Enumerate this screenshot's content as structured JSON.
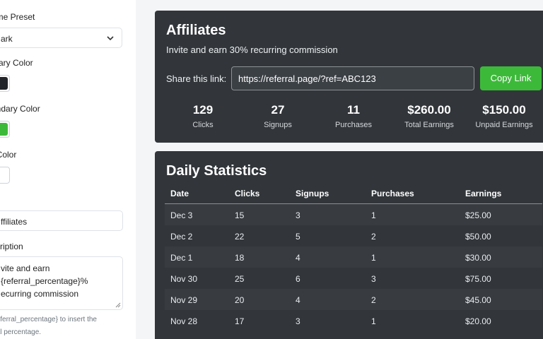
{
  "settings": {
    "theme_preset_label": "eme Preset",
    "theme_preset_value": "ark",
    "primary_color_label": "mary Color",
    "primary_color": "#212529",
    "secondary_color_label": "ondary Color",
    "secondary_color": "#3db93a",
    "text_color_label": "t Color",
    "text_color": "#ffffff",
    "title_label": "e",
    "title_value": "ffiliates",
    "description_label": "scription",
    "description_value": "vite and earn\n{referral_percentage}%\necurring commission",
    "help_text_line1": "{referral_percentage} to insert the",
    "help_text_line2": "rral percentage."
  },
  "affiliates": {
    "title": "Affiliates",
    "subtitle": "Invite and earn 30% recurring commission",
    "share_label": "Share this link:",
    "share_link": "https://referral.page/?ref=ABC123",
    "copy_button": "Copy Link",
    "stats": [
      {
        "value": "129",
        "label": "Clicks"
      },
      {
        "value": "27",
        "label": "Signups"
      },
      {
        "value": "11",
        "label": "Purchases"
      },
      {
        "value": "$260.00",
        "label": "Total Earnings"
      },
      {
        "value": "$150.00",
        "label": "Unpaid Earnings"
      }
    ]
  },
  "daily_stats": {
    "title": "Daily Statistics",
    "columns": [
      "Date",
      "Clicks",
      "Signups",
      "Purchases",
      "Earnings"
    ],
    "rows": [
      [
        "Dec 3",
        "15",
        "3",
        "1",
        "$25.00"
      ],
      [
        "Dec 2",
        "22",
        "5",
        "2",
        "$50.00"
      ],
      [
        "Dec 1",
        "18",
        "4",
        "1",
        "$30.00"
      ],
      [
        "Nov 30",
        "25",
        "6",
        "3",
        "$75.00"
      ],
      [
        "Nov 29",
        "20",
        "4",
        "2",
        "$45.00"
      ],
      [
        "Nov 28",
        "17",
        "3",
        "1",
        "$20.00"
      ]
    ]
  }
}
